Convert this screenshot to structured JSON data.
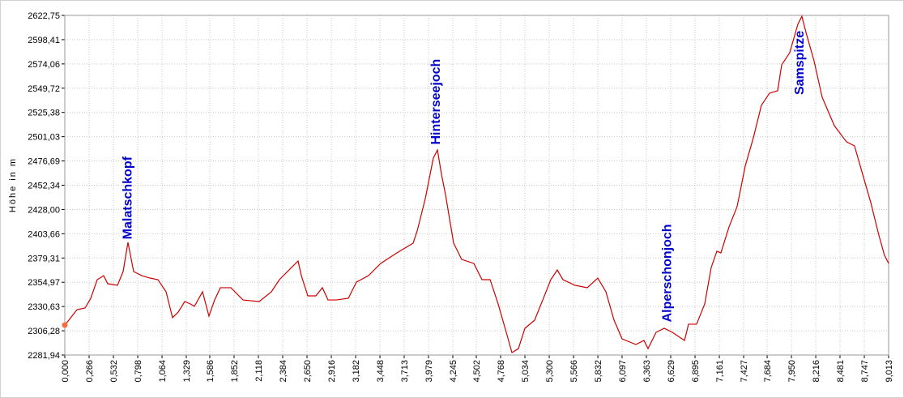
{
  "chart_data": {
    "type": "line",
    "ylabel": "Höhe in m",
    "x": [
      0,
      0.044,
      0.133,
      0.222,
      0.284,
      0.355,
      0.425,
      0.47,
      0.576,
      0.638,
      0.691,
      0.753,
      0.842,
      0.931,
      1.019,
      1.108,
      1.179,
      1.241,
      1.312,
      1.374,
      1.418,
      1.507,
      1.577,
      1.639,
      1.702,
      1.817,
      1.95,
      2.127,
      2.26,
      2.348,
      2.481,
      2.552,
      2.588,
      2.659,
      2.747,
      2.818,
      2.88,
      2.969,
      3.102,
      3.19,
      3.323,
      3.456,
      3.633,
      3.811,
      3.855,
      3.944,
      4.032,
      4.077,
      4.121,
      4.165,
      4.254,
      4.342,
      4.475,
      4.564,
      4.653,
      4.741,
      4.83,
      4.892,
      4.963,
      5.034,
      5.14,
      5.229,
      5.317,
      5.388,
      5.45,
      5.583,
      5.716,
      5.831,
      5.92,
      6.009,
      6.097,
      6.248,
      6.336,
      6.381,
      6.469,
      6.558,
      6.647,
      6.78,
      6.824,
      6.912,
      7.001,
      7.072,
      7.134,
      7.178,
      7.267,
      7.355,
      7.4,
      7.444,
      7.533,
      7.621,
      7.71,
      7.799,
      7.843,
      7.931,
      8.02,
      8.064,
      8.109,
      8.197,
      8.286,
      8.419,
      8.552,
      8.64,
      8.729,
      8.818,
      8.906,
      8.968,
      9.013
    ],
    "series": [
      {
        "color": "#cc0000",
        "values": [
          2312.0,
          2316.9,
          2327.5,
          2329.1,
          2338.9,
          2357.6,
          2361.6,
          2353.5,
          2351.9,
          2365.7,
          2395.0,
          2365.7,
          2361.6,
          2359.2,
          2357.6,
          2345.4,
          2319.4,
          2325.1,
          2335.6,
          2333.2,
          2330.8,
          2345.4,
          2321.0,
          2337.2,
          2349.5,
          2349.5,
          2337.2,
          2335.6,
          2345.4,
          2357.6,
          2369.8,
          2376.3,
          2361.6,
          2341.3,
          2341.3,
          2349.5,
          2337.2,
          2337.2,
          2338.9,
          2355.1,
          2361.6,
          2373.9,
          2384.4,
          2394.2,
          2406.4,
          2438.9,
          2479.6,
          2487.7,
          2463.3,
          2443.0,
          2394.2,
          2377.9,
          2373.9,
          2357.6,
          2357.6,
          2333.2,
          2304.7,
          2284.4,
          2288.4,
          2308.8,
          2316.9,
          2337.2,
          2357.6,
          2367.3,
          2357.6,
          2351.9,
          2349.5,
          2359.2,
          2345.4,
          2316.9,
          2298.2,
          2292.5,
          2296.6,
          2288.4,
          2304.7,
          2308.8,
          2304.7,
          2296.6,
          2312.9,
          2312.9,
          2333.2,
          2369.8,
          2386.1,
          2384.4,
          2410.5,
          2430.8,
          2451.1,
          2471.5,
          2499.9,
          2532.5,
          2544.7,
          2547.1,
          2573.1,
          2585.3,
          2613.8,
          2621.9,
          2605.7,
          2577.2,
          2540.6,
          2512.1,
          2495.9,
          2491.8,
          2463.3,
          2434.9,
          2402.3,
          2382.0,
          2373.9
        ]
      }
    ],
    "marker_color": "#ff6a3d",
    "xlim": [
      0,
      9.013
    ],
    "ylim": [
      2281.94,
      2622.75
    ],
    "xticks": [
      {
        "value": 0,
        "label": "0,000"
      },
      {
        "value": 0.266,
        "label": "0,266"
      },
      {
        "value": 0.532,
        "label": "0,532"
      },
      {
        "value": 0.798,
        "label": "0,798"
      },
      {
        "value": 1.064,
        "label": "1,064"
      },
      {
        "value": 1.329,
        "label": "1,329"
      },
      {
        "value": 1.586,
        "label": "1,586"
      },
      {
        "value": 1.852,
        "label": "1,852"
      },
      {
        "value": 2.118,
        "label": "2,118"
      },
      {
        "value": 2.384,
        "label": "2,384"
      },
      {
        "value": 2.65,
        "label": "2,650"
      },
      {
        "value": 2.916,
        "label": "2,916"
      },
      {
        "value": 3.182,
        "label": "3,182"
      },
      {
        "value": 3.448,
        "label": "3,448"
      },
      {
        "value": 3.713,
        "label": "3,713"
      },
      {
        "value": 3.979,
        "label": "3,979"
      },
      {
        "value": 4.245,
        "label": "4,245"
      },
      {
        "value": 4.502,
        "label": "4,502"
      },
      {
        "value": 4.768,
        "label": "4,768"
      },
      {
        "value": 5.034,
        "label": "5,034"
      },
      {
        "value": 5.3,
        "label": "5,300"
      },
      {
        "value": 5.566,
        "label": "5,566"
      },
      {
        "value": 5.832,
        "label": "5,832"
      },
      {
        "value": 6.097,
        "label": "6,097"
      },
      {
        "value": 6.363,
        "label": "6,363"
      },
      {
        "value": 6.629,
        "label": "6,629"
      },
      {
        "value": 6.895,
        "label": "6,895"
      },
      {
        "value": 7.161,
        "label": "7,161"
      },
      {
        "value": 7.427,
        "label": "7,427"
      },
      {
        "value": 7.684,
        "label": "7,684"
      },
      {
        "value": 7.95,
        "label": "7,950"
      },
      {
        "value": 8.216,
        "label": "8,216"
      },
      {
        "value": 8.481,
        "label": "8,481"
      },
      {
        "value": 8.747,
        "label": "8,747"
      },
      {
        "value": 9.013,
        "label": "9,013"
      }
    ],
    "yticks": [
      {
        "value": 2281.94,
        "label": "2281,94"
      },
      {
        "value": 2306.28,
        "label": "2306,28"
      },
      {
        "value": 2330.63,
        "label": "2330,63"
      },
      {
        "value": 2354.97,
        "label": "2354,97"
      },
      {
        "value": 2379.31,
        "label": "2379,31"
      },
      {
        "value": 2403.66,
        "label": "2403,66"
      },
      {
        "value": 2428.0,
        "label": "2428,00"
      },
      {
        "value": 2452.34,
        "label": "2452,34"
      },
      {
        "value": 2476.69,
        "label": "2476,69"
      },
      {
        "value": 2501.03,
        "label": "2501,03"
      },
      {
        "value": 2525.38,
        "label": "2525,38"
      },
      {
        "value": 2549.72,
        "label": "2549,72"
      },
      {
        "value": 2574.06,
        "label": "2574,06"
      },
      {
        "value": 2598.41,
        "label": "2598,41"
      },
      {
        "value": 2622.75,
        "label": "2622,75"
      }
    ],
    "grid": true,
    "annotation_color": "#0000cc",
    "annotations": [
      {
        "text": "Malatschkopf",
        "x": 0.68,
        "y": 2398
      },
      {
        "text": "Hinterseejoch",
        "x": 4.05,
        "y": 2493
      },
      {
        "text": "Alperschonjoch",
        "x": 6.58,
        "y": 2315
      },
      {
        "text": "Samspitze",
        "x": 8.03,
        "y": 2543
      }
    ]
  }
}
